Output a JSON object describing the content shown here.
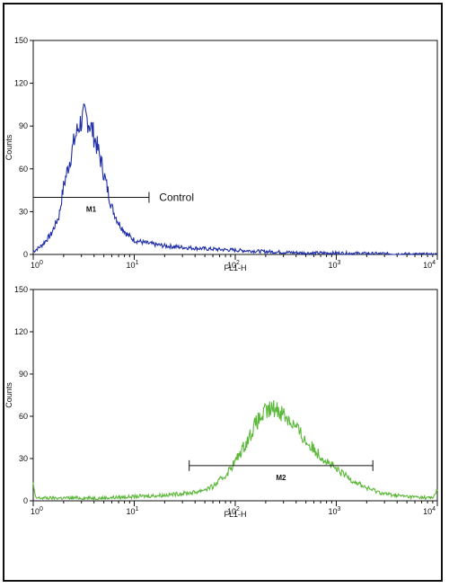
{
  "chart_data": [
    {
      "type": "line",
      "title": "",
      "xlabel": "FL1-H",
      "ylabel": "Counts",
      "x_scale": "log",
      "xlim": [
        1,
        10000
      ],
      "ylim": [
        0,
        150
      ],
      "y_ticks": [
        "0",
        "30",
        "60",
        "90",
        "120",
        "150"
      ],
      "x_tick_labels": [
        {
          "base": "10",
          "exp": "0"
        },
        {
          "base": "10",
          "exp": "1"
        },
        {
          "base": "10",
          "exp": "2"
        },
        {
          "base": "10",
          "exp": "3"
        },
        {
          "base": "10",
          "exp": "4"
        }
      ],
      "series": [
        {
          "color": "#1f2ea8",
          "x": [
            1.0,
            1.2,
            1.5,
            1.8,
            2.0,
            2.3,
            2.6,
            2.9,
            3.2,
            3.5,
            3.8,
            4.2,
            4.7,
            5.3,
            6.0,
            7.0,
            8.5,
            10.0,
            13.0,
            16.0,
            20.0,
            30.0,
            50.0,
            100.0,
            200.0,
            500.0,
            1000.0,
            10000.0
          ],
          "y": [
            2,
            6,
            14,
            27,
            48,
            66,
            82,
            92,
            97,
            94,
            88,
            78,
            65,
            49,
            33,
            22,
            14,
            10,
            8,
            7,
            6,
            5,
            4,
            3,
            2,
            1,
            1,
            0
          ]
        }
      ],
      "markers": [
        {
          "label": "M1",
          "x_start": 1.0,
          "x_end": 14.0,
          "y": 40
        }
      ],
      "annotations": [
        {
          "text": "Control",
          "x": 15.0,
          "y": 40
        }
      ]
    },
    {
      "type": "line",
      "title": "",
      "xlabel": "FL1-H",
      "ylabel": "Counts",
      "x_scale": "log",
      "xlim": [
        1,
        10000
      ],
      "ylim": [
        0,
        150
      ],
      "y_ticks": [
        "0",
        "30",
        "60",
        "90",
        "120",
        "150"
      ],
      "x_tick_labels": [
        {
          "base": "10",
          "exp": "0"
        },
        {
          "base": "10",
          "exp": "1"
        },
        {
          "base": "10",
          "exp": "2"
        },
        {
          "base": "10",
          "exp": "3"
        },
        {
          "base": "10",
          "exp": "4"
        }
      ],
      "series": [
        {
          "color": "#5cb83a",
          "x": [
            1.0,
            1.05,
            1.2,
            2.0,
            5.0,
            10.0,
            20.0,
            40.0,
            60.0,
            80.0,
            100.0,
            130.0,
            160.0,
            200.0,
            250.0,
            300.0,
            400.0,
            500.0,
            700.0,
            1000.0,
            1500.0,
            2000.0,
            3000.0,
            5000.0,
            9000.0,
            10000.0
          ],
          "y": [
            12,
            2,
            2,
            2,
            2,
            3,
            4,
            6,
            10,
            18,
            28,
            42,
            55,
            63,
            66,
            62,
            52,
            42,
            32,
            22,
            14,
            9,
            5,
            3,
            2,
            8
          ]
        }
      ],
      "markers": [
        {
          "label": "M2",
          "x_start": 35.0,
          "x_end": 2300.0,
          "y": 25
        }
      ],
      "annotations": []
    }
  ]
}
